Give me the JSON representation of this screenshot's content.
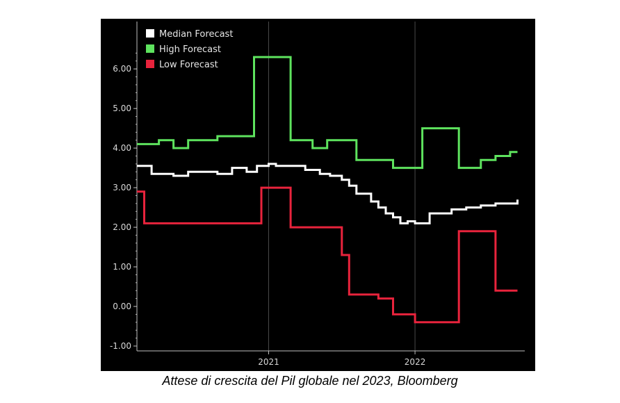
{
  "caption": "Attese di crescita del Pil globale nel 2023, Bloomberg",
  "chart_data": {
    "type": "line",
    "step": true,
    "title": "",
    "xlabel": "",
    "ylabel": "",
    "ylim": [
      -1.0,
      6.6
    ],
    "yticks": [
      6.0,
      5.0,
      4.0,
      3.0,
      2.0,
      1.0,
      0.0,
      -1.0
    ],
    "ytick_labels": [
      "6.00",
      "5.00",
      "4.00",
      "3.00",
      "2.00",
      "1.00",
      "0.00",
      "-1.00"
    ],
    "xlim": [
      2020.1,
      2022.75
    ],
    "xticks": [
      2021,
      2022
    ],
    "xtick_labels": [
      "2021",
      "2022"
    ],
    "grid": true,
    "background": "#000000",
    "legend_position": "top-left",
    "series": [
      {
        "name": "Median Forecast",
        "color": "#ffffff",
        "x": [
          2020.1,
          2020.2,
          2020.35,
          2020.45,
          2020.65,
          2020.75,
          2020.85,
          2020.92,
          2021.0,
          2021.05,
          2021.15,
          2021.25,
          2021.35,
          2021.42,
          2021.5,
          2021.55,
          2021.6,
          2021.7,
          2021.75,
          2021.8,
          2021.85,
          2021.9,
          2021.95,
          2022.0,
          2022.1,
          2022.25,
          2022.35,
          2022.45,
          2022.55,
          2022.7
        ],
        "y": [
          3.55,
          3.35,
          3.3,
          3.4,
          3.35,
          3.5,
          3.4,
          3.55,
          3.6,
          3.55,
          3.55,
          3.45,
          3.35,
          3.3,
          3.2,
          3.05,
          2.85,
          2.65,
          2.5,
          2.35,
          2.25,
          2.1,
          2.15,
          2.1,
          2.35,
          2.45,
          2.5,
          2.55,
          2.6,
          2.7
        ]
      },
      {
        "name": "High Forecast",
        "color": "#5ee35e",
        "x": [
          2020.1,
          2020.25,
          2020.35,
          2020.45,
          2020.65,
          2020.9,
          2020.92,
          2021.15,
          2021.3,
          2021.4,
          2021.5,
          2021.6,
          2021.7,
          2021.85,
          2022.05,
          2022.3,
          2022.35,
          2022.45,
          2022.55,
          2022.65,
          2022.7
        ],
        "y": [
          4.1,
          4.2,
          4.0,
          4.2,
          4.3,
          6.3,
          6.3,
          4.2,
          4.0,
          4.2,
          4.2,
          3.7,
          3.7,
          3.5,
          4.5,
          3.5,
          3.5,
          3.7,
          3.8,
          3.9,
          3.9
        ]
      },
      {
        "name": "Low Forecast",
        "color": "#e8233c",
        "x": [
          2020.1,
          2020.15,
          2020.7,
          2020.95,
          2021.15,
          2021.3,
          2021.5,
          2021.55,
          2021.65,
          2021.75,
          2021.85,
          2022.0,
          2022.15,
          2022.3,
          2022.35,
          2022.45,
          2022.55,
          2022.65,
          2022.7
        ],
        "y": [
          2.9,
          2.1,
          2.1,
          3.0,
          2.0,
          2.0,
          1.3,
          0.3,
          0.3,
          0.2,
          -0.2,
          -0.4,
          -0.4,
          1.9,
          1.9,
          1.9,
          0.4,
          0.4,
          0.4
        ]
      }
    ],
    "legend": [
      "Median Forecast",
      "High Forecast",
      "Low Forecast"
    ],
    "colors": {
      "grid": "#4a4a4a",
      "axis": "#bfbfbf",
      "tick_label": "#d9d9d9"
    }
  }
}
